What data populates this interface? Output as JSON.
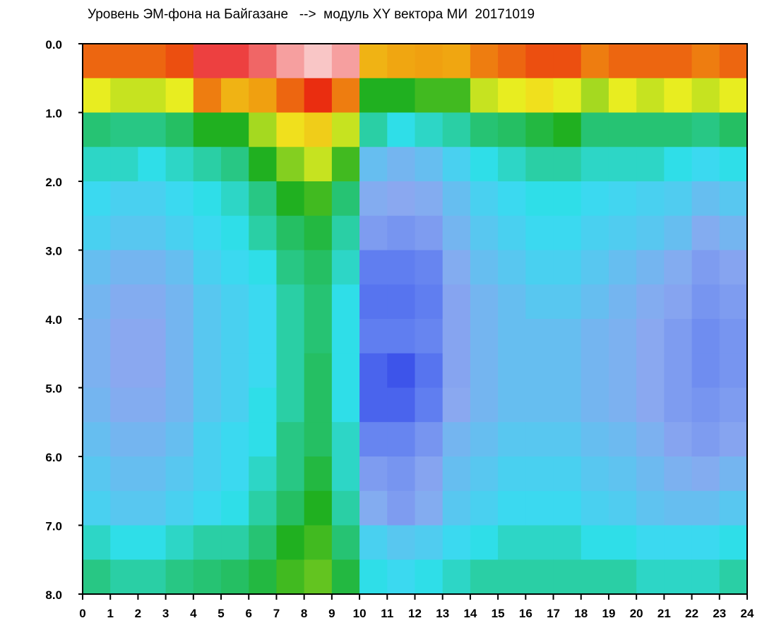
{
  "chart_data": {
    "type": "heatmap",
    "title": "Уровень ЭМ-фона на Байгазане   -->  модуль XY вектора МИ  20171019",
    "xlabel": "",
    "ylabel": "",
    "xlim": [
      0,
      24
    ],
    "ylim": [
      0,
      8
    ],
    "y_inverted": true,
    "x_ticks": [
      "0",
      "1",
      "2",
      "3",
      "4",
      "5",
      "6",
      "7",
      "8",
      "9",
      "10",
      "11",
      "12",
      "13",
      "14",
      "15",
      "16",
      "17",
      "18",
      "19",
      "20",
      "21",
      "22",
      "23",
      "24"
    ],
    "y_ticks": [
      "0.0",
      "1.0",
      "2.0",
      "3.0",
      "4.0",
      "5.0",
      "6.0",
      "7.0",
      "8.0"
    ],
    "x_step": 1,
    "y_step": 0.5,
    "color_scale": [
      "#0a14e0",
      "#5a78f0",
      "#8aa8f0",
      "#30e0f0",
      "#20b020",
      "#f0f020",
      "#f0a010",
      "#e81010",
      "#ffffff"
    ],
    "value_range": [
      0,
      1
    ],
    "values": [
      [
        0.8,
        0.8,
        0.8,
        0.82,
        0.9,
        0.9,
        0.92,
        0.95,
        0.97,
        0.95,
        0.72,
        0.74,
        0.75,
        0.74,
        0.78,
        0.8,
        0.82,
        0.82,
        0.78,
        0.8,
        0.8,
        0.8,
        0.78,
        0.8
      ],
      [
        0.62,
        0.6,
        0.6,
        0.62,
        0.78,
        0.72,
        0.75,
        0.8,
        0.85,
        0.78,
        0.5,
        0.5,
        0.52,
        0.52,
        0.6,
        0.62,
        0.65,
        0.62,
        0.58,
        0.62,
        0.6,
        0.62,
        0.6,
        0.62
      ],
      [
        0.45,
        0.44,
        0.44,
        0.46,
        0.5,
        0.5,
        0.58,
        0.65,
        0.68,
        0.6,
        0.42,
        0.38,
        0.4,
        0.42,
        0.45,
        0.46,
        0.48,
        0.5,
        0.45,
        0.45,
        0.45,
        0.45,
        0.44,
        0.46
      ],
      [
        0.4,
        0.4,
        0.38,
        0.4,
        0.42,
        0.44,
        0.5,
        0.56,
        0.6,
        0.52,
        0.3,
        0.28,
        0.3,
        0.34,
        0.38,
        0.4,
        0.42,
        0.42,
        0.4,
        0.4,
        0.4,
        0.38,
        0.36,
        0.38
      ],
      [
        0.36,
        0.34,
        0.34,
        0.36,
        0.38,
        0.4,
        0.44,
        0.5,
        0.52,
        0.45,
        0.26,
        0.25,
        0.26,
        0.3,
        0.34,
        0.36,
        0.38,
        0.38,
        0.36,
        0.35,
        0.34,
        0.33,
        0.3,
        0.32
      ],
      [
        0.34,
        0.32,
        0.32,
        0.34,
        0.36,
        0.38,
        0.42,
        0.46,
        0.48,
        0.42,
        0.22,
        0.2,
        0.22,
        0.28,
        0.32,
        0.34,
        0.36,
        0.36,
        0.34,
        0.33,
        0.32,
        0.3,
        0.26,
        0.28
      ],
      [
        0.3,
        0.28,
        0.28,
        0.3,
        0.34,
        0.36,
        0.38,
        0.44,
        0.46,
        0.4,
        0.14,
        0.14,
        0.16,
        0.26,
        0.3,
        0.32,
        0.34,
        0.34,
        0.32,
        0.3,
        0.28,
        0.26,
        0.22,
        0.24
      ],
      [
        0.28,
        0.26,
        0.26,
        0.28,
        0.32,
        0.34,
        0.36,
        0.42,
        0.45,
        0.38,
        0.12,
        0.12,
        0.14,
        0.24,
        0.28,
        0.3,
        0.32,
        0.32,
        0.3,
        0.28,
        0.26,
        0.24,
        0.2,
        0.22
      ],
      [
        0.27,
        0.25,
        0.25,
        0.28,
        0.32,
        0.34,
        0.36,
        0.42,
        0.45,
        0.38,
        0.14,
        0.14,
        0.16,
        0.24,
        0.28,
        0.3,
        0.3,
        0.3,
        0.28,
        0.27,
        0.25,
        0.22,
        0.18,
        0.2
      ],
      [
        0.27,
        0.25,
        0.25,
        0.28,
        0.32,
        0.34,
        0.36,
        0.42,
        0.46,
        0.38,
        0.1,
        0.08,
        0.12,
        0.24,
        0.28,
        0.3,
        0.3,
        0.3,
        0.28,
        0.27,
        0.25,
        0.22,
        0.18,
        0.2
      ],
      [
        0.28,
        0.26,
        0.26,
        0.28,
        0.32,
        0.34,
        0.38,
        0.42,
        0.46,
        0.38,
        0.1,
        0.1,
        0.14,
        0.25,
        0.28,
        0.3,
        0.3,
        0.3,
        0.28,
        0.27,
        0.25,
        0.22,
        0.2,
        0.22
      ],
      [
        0.3,
        0.28,
        0.28,
        0.3,
        0.34,
        0.36,
        0.38,
        0.44,
        0.46,
        0.4,
        0.16,
        0.16,
        0.2,
        0.28,
        0.3,
        0.32,
        0.32,
        0.32,
        0.3,
        0.29,
        0.27,
        0.24,
        0.22,
        0.24
      ],
      [
        0.32,
        0.3,
        0.3,
        0.32,
        0.34,
        0.36,
        0.4,
        0.44,
        0.48,
        0.4,
        0.22,
        0.2,
        0.24,
        0.3,
        0.32,
        0.34,
        0.34,
        0.34,
        0.32,
        0.31,
        0.29,
        0.27,
        0.26,
        0.28
      ],
      [
        0.34,
        0.32,
        0.32,
        0.34,
        0.36,
        0.38,
        0.42,
        0.46,
        0.5,
        0.42,
        0.26,
        0.22,
        0.26,
        0.32,
        0.34,
        0.36,
        0.36,
        0.36,
        0.34,
        0.33,
        0.31,
        0.3,
        0.3,
        0.32
      ],
      [
        0.4,
        0.38,
        0.38,
        0.4,
        0.42,
        0.42,
        0.45,
        0.5,
        0.52,
        0.45,
        0.34,
        0.32,
        0.33,
        0.36,
        0.38,
        0.4,
        0.4,
        0.4,
        0.38,
        0.38,
        0.36,
        0.36,
        0.36,
        0.38
      ],
      [
        0.44,
        0.42,
        0.42,
        0.44,
        0.45,
        0.46,
        0.48,
        0.52,
        0.54,
        0.48,
        0.38,
        0.36,
        0.38,
        0.4,
        0.42,
        0.42,
        0.42,
        0.42,
        0.42,
        0.42,
        0.4,
        0.4,
        0.4,
        0.42
      ]
    ]
  }
}
